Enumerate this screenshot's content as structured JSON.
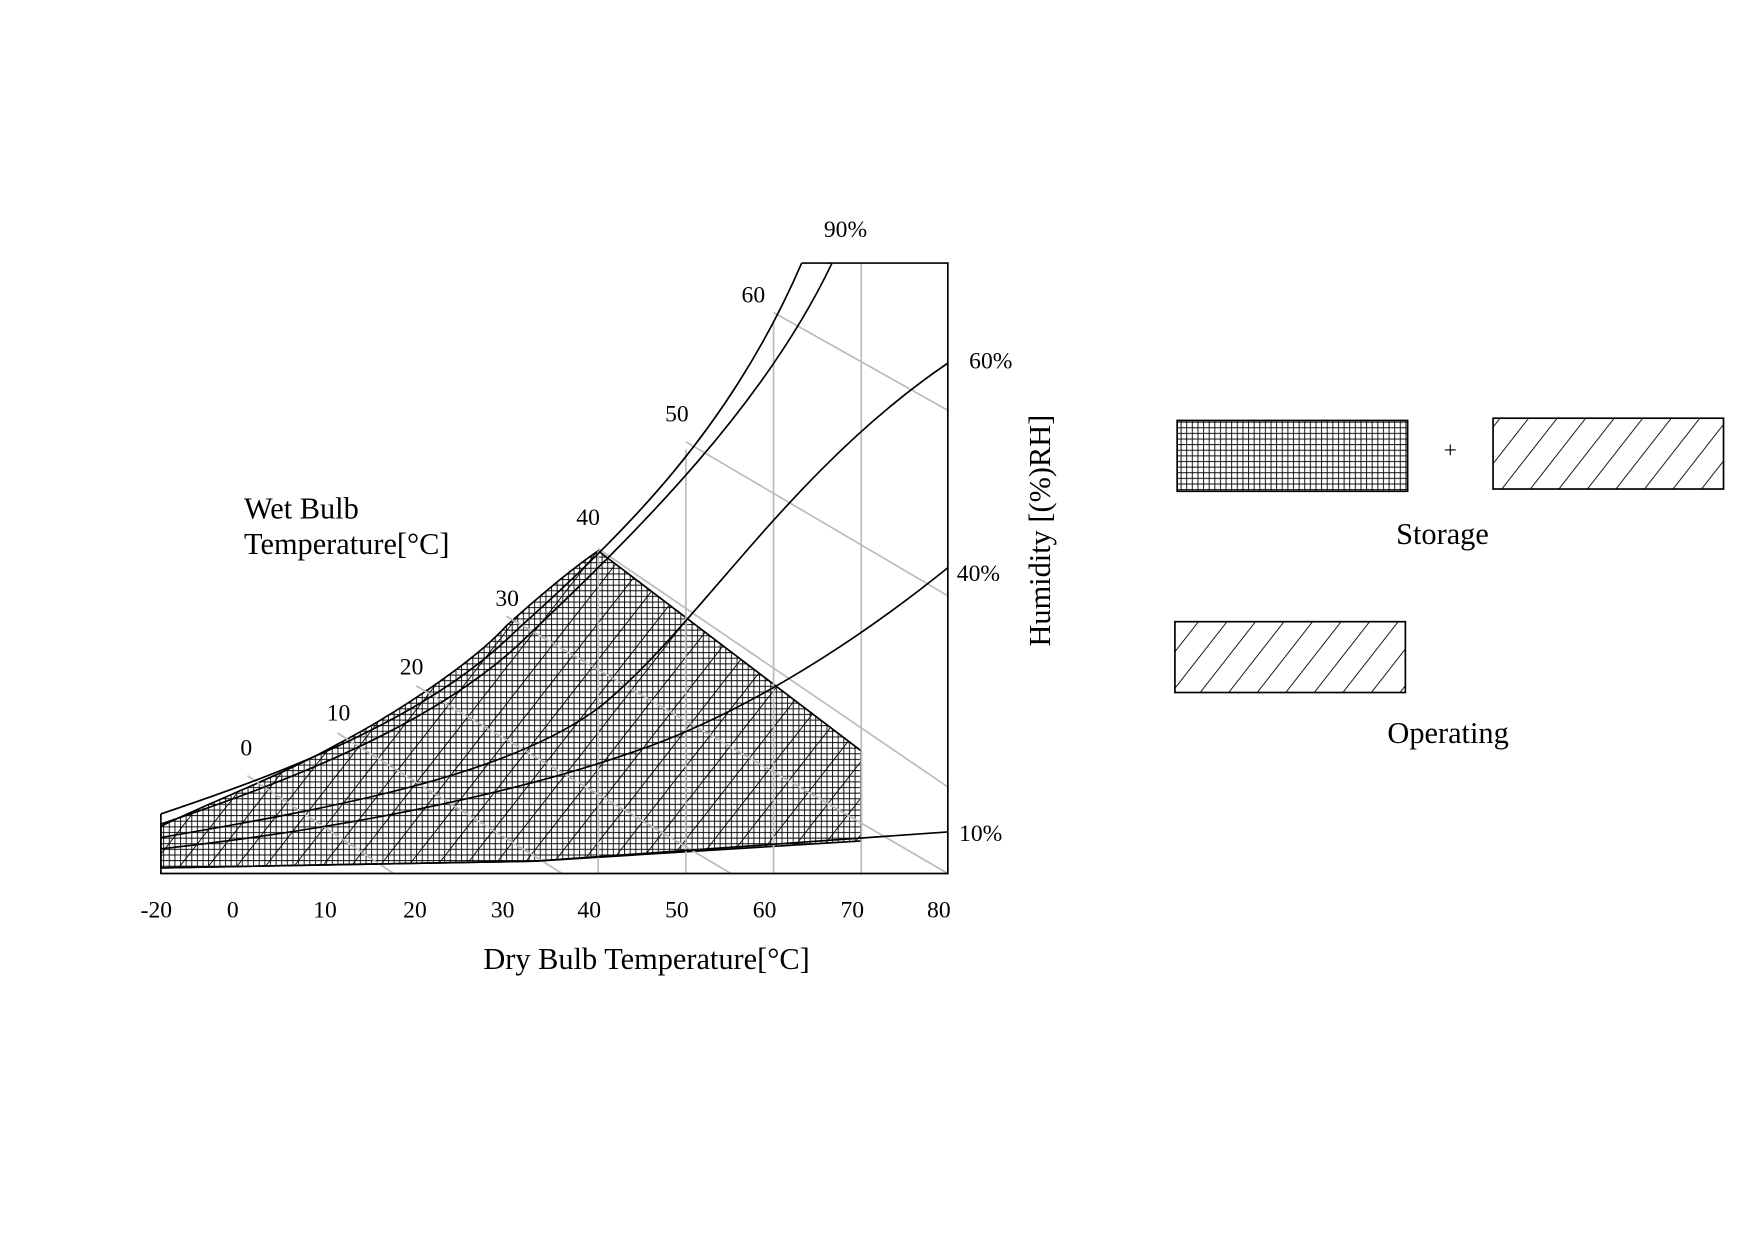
{
  "x_axis": {
    "label": "Dry Bulb Temperature[°C]",
    "ticks": [
      "-20",
      "0",
      "10",
      "20",
      "30",
      "40",
      "50",
      "60",
      "70",
      "80"
    ]
  },
  "y_axis_label": "Humidity [(%)RH]",
  "wet_bulb": {
    "label_lines": [
      "Wet Bulb",
      "Temperature[°C]"
    ],
    "ticks": [
      "0",
      "10",
      "20",
      "30",
      "40",
      "50",
      "60"
    ]
  },
  "rh_labels": [
    "90%",
    "60%",
    "40%",
    "10%"
  ],
  "legend": {
    "plus": "+",
    "storage": "Storage",
    "operating": "Operating"
  }
}
